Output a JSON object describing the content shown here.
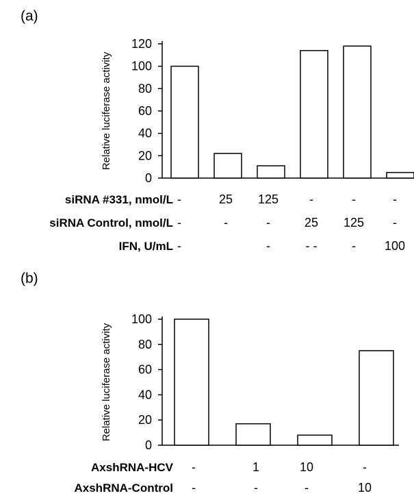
{
  "chart_data": [
    {
      "panel": "(a)",
      "type": "bar",
      "ylabel": "Relative luciferase activity",
      "ylim": [
        0,
        120
      ],
      "yticks": [
        0,
        20,
        40,
        60,
        80,
        100,
        120
      ],
      "values": [
        100,
        22,
        11,
        114,
        118,
        5
      ],
      "conditions": [
        {
          "label": "siRNA #331, nmol/L",
          "values": [
            "-",
            "25",
            "125",
            "-",
            "-",
            "-"
          ]
        },
        {
          "label": "siRNA Control, nmol/L",
          "values": [
            "-",
            "-",
            "-",
            "25",
            "125",
            "-"
          ]
        },
        {
          "label": "IFN, U/mL",
          "values": [
            "-",
            "",
            "-",
            "- -",
            "-",
            "100"
          ]
        }
      ]
    },
    {
      "panel": "(b)",
      "type": "bar",
      "ylabel": "Relative luciferase activity",
      "ylim": [
        0,
        100
      ],
      "yticks": [
        0,
        20,
        40,
        60,
        80,
        100
      ],
      "values": [
        100,
        17,
        8,
        75
      ],
      "conditions": [
        {
          "label": "AxshRNA-HCV",
          "values": [
            "-",
            "1",
            "10",
            "-"
          ]
        },
        {
          "label": "AxshRNA-Control",
          "values": [
            "-",
            "-",
            "-",
            "10"
          ]
        }
      ]
    }
  ]
}
